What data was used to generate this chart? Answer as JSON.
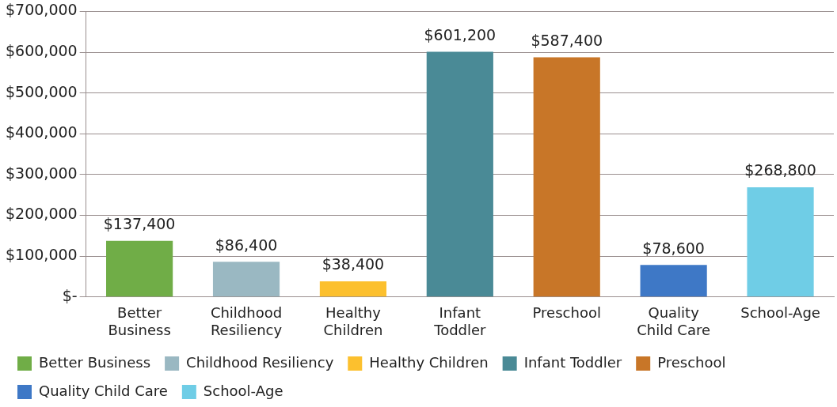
{
  "chart_data": {
    "type": "bar",
    "categories": [
      "Better Business",
      "Childhood Resiliency",
      "Healthy Children",
      "Infant Toddler",
      "Preschool",
      "Quality Child Care",
      "School-Age"
    ],
    "series": [
      {
        "name": "Better Business",
        "color": "#70ad47",
        "values": [
          137400,
          null,
          null,
          null,
          null,
          null,
          null
        ],
        "value_labels": [
          "$137,400",
          null,
          null,
          null,
          null,
          null,
          null
        ]
      },
      {
        "name": "Childhood Resiliency",
        "color": "#9ab8c2",
        "values": [
          null,
          86400,
          null,
          null,
          null,
          null,
          null
        ],
        "value_labels": [
          null,
          "$86,400",
          null,
          null,
          null,
          null,
          null
        ]
      },
      {
        "name": "Healthy Children",
        "color": "#fcc02e",
        "values": [
          null,
          null,
          38400,
          null,
          null,
          null,
          null
        ],
        "value_labels": [
          null,
          null,
          "$38,400",
          null,
          null,
          null,
          null
        ]
      },
      {
        "name": "Infant Toddler",
        "color": "#4a8a96",
        "values": [
          null,
          null,
          null,
          601200,
          null,
          null,
          null
        ],
        "value_labels": [
          null,
          null,
          null,
          "$601,200",
          null,
          null,
          null
        ]
      },
      {
        "name": "Preschool",
        "color": "#c87628",
        "values": [
          null,
          null,
          null,
          null,
          587400,
          null,
          null
        ],
        "value_labels": [
          null,
          null,
          null,
          null,
          "$587,400",
          null,
          null
        ]
      },
      {
        "name": "Quality Child Care",
        "color": "#3e78c6",
        "values": [
          null,
          null,
          null,
          null,
          null,
          78600,
          null
        ],
        "value_labels": [
          null,
          null,
          null,
          null,
          null,
          "$78,600",
          null
        ]
      },
      {
        "name": "School-Age",
        "color": "#6fcde6",
        "values": [
          null,
          null,
          null,
          null,
          null,
          null,
          268800
        ],
        "value_labels": [
          null,
          null,
          null,
          null,
          null,
          null,
          "$268,800"
        ]
      }
    ],
    "ylim": [
      0,
      700000
    ],
    "yticks": [
      {
        "value": 0,
        "label": "$-"
      },
      {
        "value": 100000,
        "label": "$100,000"
      },
      {
        "value": 200000,
        "label": "$200,000"
      },
      {
        "value": 300000,
        "label": "$300,000"
      },
      {
        "value": 400000,
        "label": "$400,000"
      },
      {
        "value": 500000,
        "label": "$500,000"
      },
      {
        "value": 600000,
        "label": "$600,000"
      },
      {
        "value": 700000,
        "label": "$700,000"
      }
    ],
    "grid": "y",
    "legend": "bottom"
  }
}
